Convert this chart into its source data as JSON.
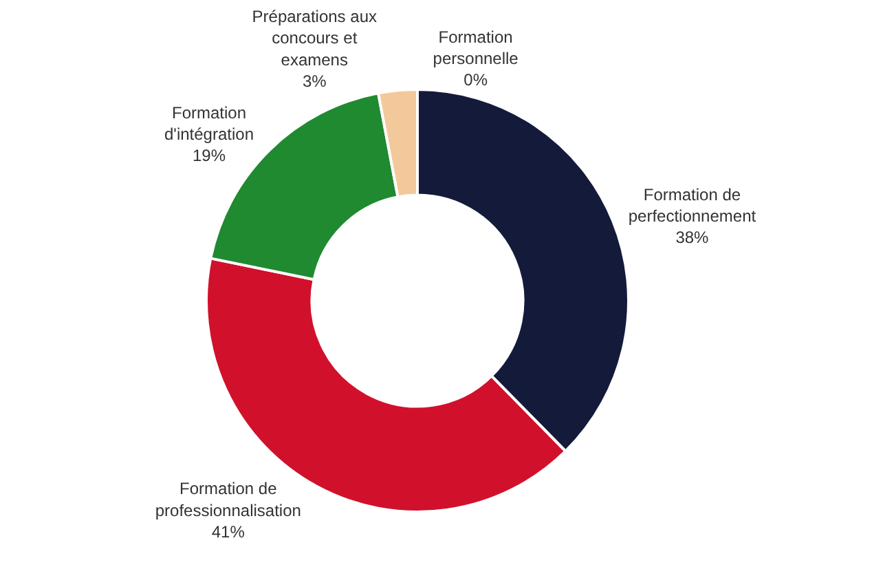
{
  "chart_data": {
    "type": "donut",
    "categories": [
      "Formation personnelle",
      "Formation de perfectionnement",
      "Formation de professionnalisation",
      "Formation d'intégration",
      "Préparations aux concours et examens"
    ],
    "values": [
      0,
      38,
      41,
      19,
      3
    ],
    "value_labels": [
      "0%",
      "38%",
      "41%",
      "19%",
      "3%"
    ],
    "colors": [
      "#e8c9a8",
      "#141a3a",
      "#d1112c",
      "#1f8a30",
      "#f3c99c"
    ],
    "legend": false
  }
}
